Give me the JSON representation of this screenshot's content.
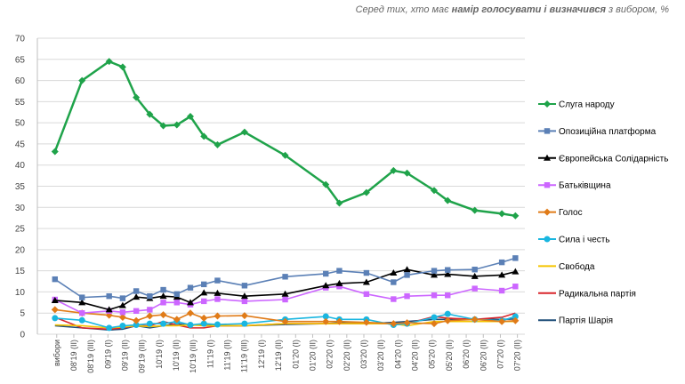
{
  "chart_data": {
    "type": "line",
    "subtitle": {
      "before": "Серед тих, хто має ",
      "bold": "намір голосувати і визначився",
      "after": " з вибором, %"
    },
    "x": [
      0,
      2,
      4,
      5,
      6,
      7,
      8,
      9,
      10,
      11,
      12,
      14,
      17,
      20,
      21,
      23,
      25,
      26,
      28,
      29,
      31,
      33,
      34
    ],
    "xlim": [
      -1.3,
      34.7
    ],
    "xticks": [
      {
        "value": 0.13,
        "label": "вибори"
      },
      {
        "value": 1.39,
        "label": "08'19 (II)"
      },
      {
        "value": 2.65,
        "label": "08'19 (III)"
      },
      {
        "value": 3.91,
        "label": "09'19 (I)"
      },
      {
        "value": 5.17,
        "label": "09'19 (II)"
      },
      {
        "value": 6.43,
        "label": "09'19 (III)"
      },
      {
        "value": 7.69,
        "label": "10'19 (I)"
      },
      {
        "value": 8.95,
        "label": "10'19 (II)"
      },
      {
        "value": 10.21,
        "label": "10'19 (III)"
      },
      {
        "value": 11.47,
        "label": "11'19 (I)"
      },
      {
        "value": 12.73,
        "label": "11'19 (II)"
      },
      {
        "value": 13.99,
        "label": "11'19 (III)"
      },
      {
        "value": 15.25,
        "label": "12'19 (I)"
      },
      {
        "value": 16.51,
        "label": "12'19 (II)"
      },
      {
        "value": 17.77,
        "label": "01'20 (I)"
      },
      {
        "value": 19.03,
        "label": "01'20 (II)"
      },
      {
        "value": 20.29,
        "label": "02'20 (I)"
      },
      {
        "value": 21.55,
        "label": "02'20 (II)"
      },
      {
        "value": 22.81,
        "label": "03'20 (I)"
      },
      {
        "value": 24.07,
        "label": "03'20 (II)"
      },
      {
        "value": 25.33,
        "label": "04'20 (I)"
      },
      {
        "value": 26.59,
        "label": "04'20 (II)"
      },
      {
        "value": 27.85,
        "label": "05'20 (I)"
      },
      {
        "value": 29.11,
        "label": "05'20 (II)"
      },
      {
        "value": 30.37,
        "label": "06'20 (I)"
      },
      {
        "value": 31.63,
        "label": "06'20 (II)"
      },
      {
        "value": 32.89,
        "label": "07'20 (I)"
      },
      {
        "value": 34.15,
        "label": "07'20 (II)"
      }
    ],
    "ylim": [
      0,
      70
    ],
    "yticks": [
      0,
      5,
      10,
      15,
      20,
      25,
      30,
      35,
      40,
      45,
      50,
      55,
      60,
      65,
      70
    ],
    "grid": true,
    "series": [
      {
        "name": "Слуга народу",
        "color": "#1fa34a",
        "marker": "diamond",
        "values": [
          43.2,
          60,
          64.5,
          63.2,
          56,
          52,
          49.3,
          49.5,
          51.5,
          46.8,
          44.8,
          47.8,
          42.3,
          35.4,
          31,
          33.5,
          38.7,
          38.1,
          34,
          31.6,
          29.3,
          28.5,
          28
        ]
      },
      {
        "name": "Опозиційна платформа",
        "color": "#5b80b6",
        "marker": "square",
        "values": [
          13,
          8.7,
          9,
          8.5,
          10.2,
          9,
          10.5,
          9.5,
          11,
          11.8,
          12.7,
          11.5,
          13.6,
          14.3,
          15,
          14.5,
          12.3,
          14,
          15,
          15.2,
          15.3,
          17,
          18
        ]
      },
      {
        "name": "Європейська Солідарність",
        "color": "#000000",
        "marker": "triangle",
        "values": [
          8,
          7.5,
          5.8,
          6.8,
          8.8,
          8.5,
          9,
          8.8,
          7.5,
          9.8,
          9.7,
          9,
          9.5,
          11.5,
          12,
          12.3,
          14.5,
          15.3,
          14,
          14.2,
          13.7,
          14,
          14.8
        ]
      },
      {
        "name": "Батьківщина",
        "color": "#cc66ff",
        "marker": "square",
        "values": [
          8.2,
          5,
          5.5,
          5.2,
          5.5,
          5.8,
          7.5,
          7.5,
          7,
          7.8,
          8.3,
          7.8,
          8.2,
          11,
          11.3,
          9.5,
          8.3,
          9,
          9.2,
          9.2,
          10.8,
          10.3,
          11.3
        ]
      },
      {
        "name": "Голос",
        "color": "#e07b18",
        "marker": "diamond",
        "values": [
          5.8,
          5,
          4.5,
          4,
          3.2,
          4.3,
          4.6,
          3.5,
          5,
          3.8,
          4.3,
          4.4,
          3,
          3,
          3,
          2.8,
          2.5,
          2.7,
          2.5,
          3.2,
          3.5,
          3,
          3.2
        ]
      },
      {
        "name": "Сила і честь",
        "color": "#19b6e0",
        "marker": "circle",
        "values": [
          3.8,
          3.3,
          1.5,
          2,
          2.2,
          2.5,
          2.5,
          3,
          2.2,
          2.5,
          2.3,
          2.5,
          3.5,
          4.2,
          3.5,
          3.5,
          2.2,
          2.5,
          4,
          4.8,
          3.5,
          3.2,
          4.2
        ]
      },
      {
        "name": "Свобода",
        "color": "#f5c400",
        "marker": "none",
        "values": [
          2.2,
          2,
          1.5,
          1.7,
          2,
          1.8,
          2,
          2,
          2.2,
          2,
          2,
          2,
          2.5,
          2.5,
          2.5,
          2.5,
          2.5,
          2,
          3,
          3,
          3,
          3,
          3
        ]
      },
      {
        "name": "Радикальна партія",
        "color": "#d9262c",
        "marker": "none",
        "values": [
          4,
          1.5,
          1.2,
          1.5,
          2,
          2,
          3,
          2.2,
          1.5,
          1.5,
          2,
          2,
          2.5,
          2.5,
          2.5,
          2.5,
          2.5,
          2.5,
          4.2,
          3.8,
          3.5,
          4,
          5
        ]
      },
      {
        "name": "Партія Шарія",
        "color": "#1f4e79",
        "marker": "none",
        "values": [
          2,
          1.5,
          1,
          1.2,
          2,
          1.5,
          2,
          2.5,
          2,
          2.5,
          2,
          2,
          2.3,
          2.5,
          2.7,
          2.5,
          2.8,
          3,
          3.5,
          3.5,
          3.5,
          3.5,
          3.6
        ]
      }
    ]
  }
}
